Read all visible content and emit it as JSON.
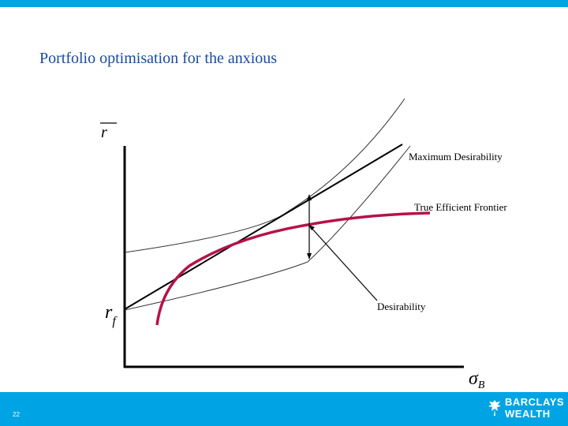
{
  "slide": {
    "title": "Portfolio optimisation for the anxious",
    "page_number": "22"
  },
  "diagram": {
    "y_axis_label": "r",
    "rf_label": "r",
    "rf_subscript": "f",
    "x_axis_label": "σ",
    "x_axis_subscript": "B",
    "annotations": {
      "maximum_desirability": "Maximum Desirability",
      "true_efficient_frontier": "True Efficient Frontier",
      "desirability": "Desirability"
    },
    "colors": {
      "frontier": "#b5124a",
      "axes": "#000000",
      "curves": "#333333"
    }
  },
  "brand": {
    "line1": "BARCLAYS",
    "line2": "WEALTH",
    "logo_icon": "eagle-icon",
    "color": "#00a4e4"
  }
}
